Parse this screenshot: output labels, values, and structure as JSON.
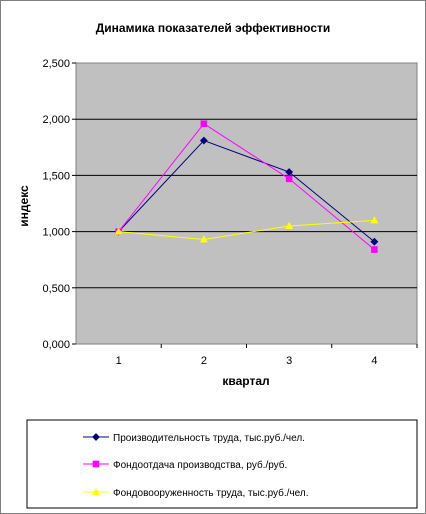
{
  "chart_data": {
    "type": "line",
    "title": "Динамика показателей эффективности",
    "xlabel": "квартал",
    "ylabel": "индекс",
    "categories": [
      "1",
      "2",
      "3",
      "4"
    ],
    "ylim": [
      0,
      2.5
    ],
    "yticks": [
      0,
      0.5,
      1.0,
      1.5,
      2.0,
      2.5
    ],
    "ytick_labels": [
      "0,000",
      "0,500",
      "1,000",
      "1,500",
      "2,000",
      "2,500"
    ],
    "grid": true,
    "legend_position": "bottom",
    "plot_background": "#c0c0c0",
    "series": [
      {
        "name": "Производительность труда, тыс.руб./чел.",
        "values": [
          1.0,
          1.81,
          1.53,
          0.91
        ],
        "color": "#000080",
        "marker": "diamond"
      },
      {
        "name": "Фондоотдача производства, руб./руб.",
        "values": [
          1.0,
          1.96,
          1.47,
          0.84
        ],
        "color": "#ff00ff",
        "marker": "square"
      },
      {
        "name": "Фондовооруженность труда, тыс.руб./чел.",
        "values": [
          1.0,
          0.93,
          1.05,
          1.1
        ],
        "color": "#ffff00",
        "marker": "triangle"
      }
    ]
  }
}
